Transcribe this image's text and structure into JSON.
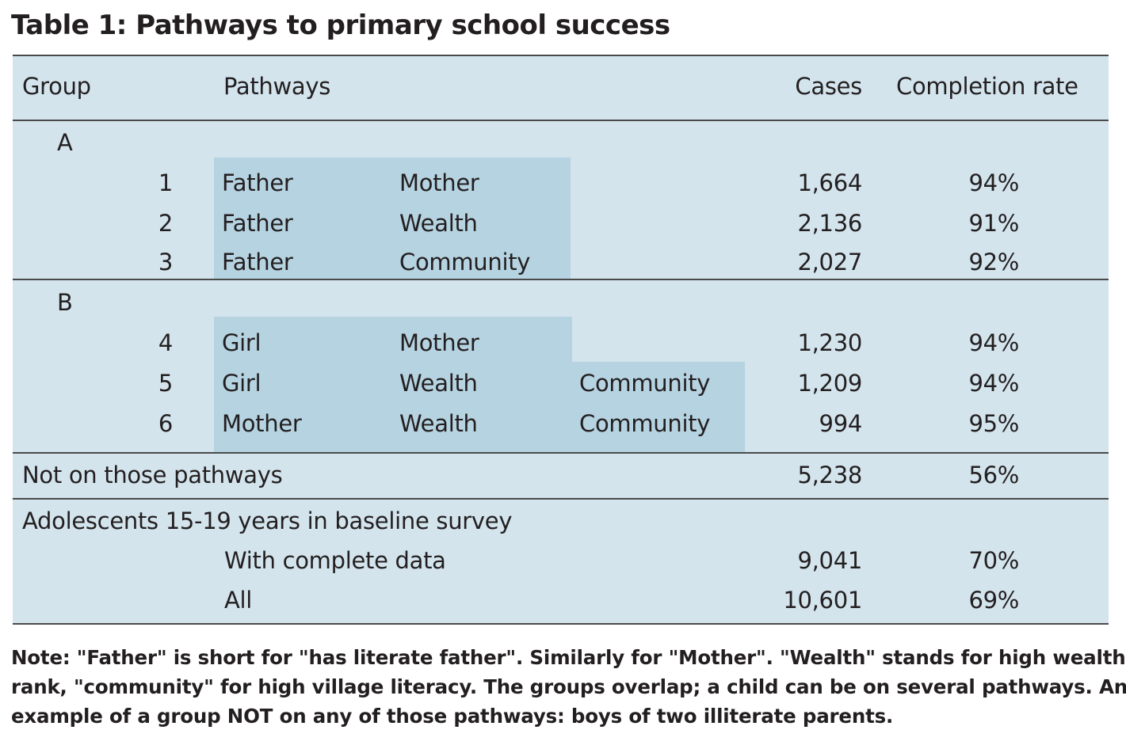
{
  "title": "Table 1: Pathways to primary school success",
  "header": {
    "group": "Group",
    "pathways": "Pathways",
    "cases": "Cases",
    "completion_rate": "Completion rate"
  },
  "group_a": {
    "label": "A",
    "rows": [
      {
        "num": "1",
        "p1": "Father",
        "p2": "Mother",
        "p3": "",
        "cases": "1,664",
        "rate": "94%"
      },
      {
        "num": "2",
        "p1": "Father",
        "p2": "Wealth",
        "p3": "",
        "cases": "2,136",
        "rate": "91%"
      },
      {
        "num": "3",
        "p1": "Father",
        "p2": "Community",
        "p3": "",
        "cases": "2,027",
        "rate": "92%"
      }
    ]
  },
  "group_b": {
    "label": "B",
    "rows": [
      {
        "num": "4",
        "p1": "Girl",
        "p2": "Mother",
        "p3": "",
        "cases": "1,230",
        "rate": "94%"
      },
      {
        "num": "5",
        "p1": "Girl",
        "p2": "Wealth",
        "p3": "Community",
        "cases": "1,209",
        "rate": "94%"
      },
      {
        "num": "6",
        "p1": "Mother",
        "p2": "Wealth",
        "p3": "Community",
        "cases": "994",
        "rate": "95%"
      }
    ]
  },
  "not_on_pathways": {
    "label": "Not on those pathways",
    "cases": "5,238",
    "rate": "56%"
  },
  "adolescents": {
    "label": "Adolescents 15-19 years in baseline survey",
    "rows": [
      {
        "label": "With complete data",
        "cases": "9,041",
        "rate": "70%"
      },
      {
        "label": "All",
        "cases": "10,601",
        "rate": "69%"
      }
    ]
  },
  "note": {
    "line1": "Note: \"Father\" is short for \"has literate father\". Similarly for \"Mother\". \"Wealth\" stands for high wealth",
    "line2": "rank, \"community\" for high village literacy. The groups overlap; a child can be on several pathways. An",
    "line3": "example of a group NOT on any of those pathways: boys of two illiterate parents."
  },
  "colors": {
    "table_background": "#d3e4ed",
    "pathway_highlight": "#b6d3e1",
    "rule": "#4a4a4a",
    "text": "#231f20"
  }
}
